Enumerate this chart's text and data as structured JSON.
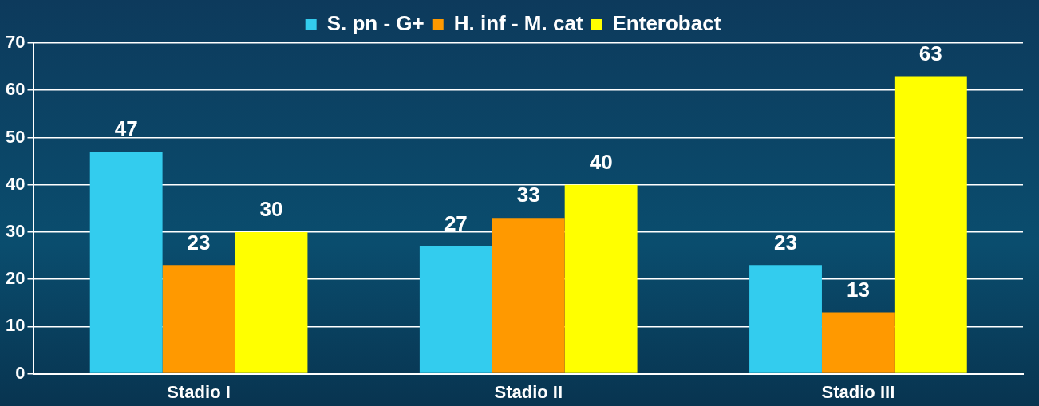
{
  "chart_data": {
    "type": "bar",
    "categories": [
      "Stadio I",
      "Stadio II",
      "Stadio III"
    ],
    "series": [
      {
        "name": "S. pn - G+",
        "color": "#33ccee",
        "values": [
          47,
          27,
          23
        ]
      },
      {
        "name": "H. inf - M. cat",
        "color": "#ff9900",
        "values": [
          23,
          33,
          13
        ]
      },
      {
        "name": "Enterobact",
        "color": "#ffff00",
        "values": [
          30,
          40,
          63
        ]
      }
    ],
    "ylim": [
      0,
      70
    ],
    "yticks": [
      0,
      10,
      20,
      30,
      40,
      50,
      60,
      70
    ],
    "grid": "y",
    "legend": "top",
    "data_labels": true
  }
}
